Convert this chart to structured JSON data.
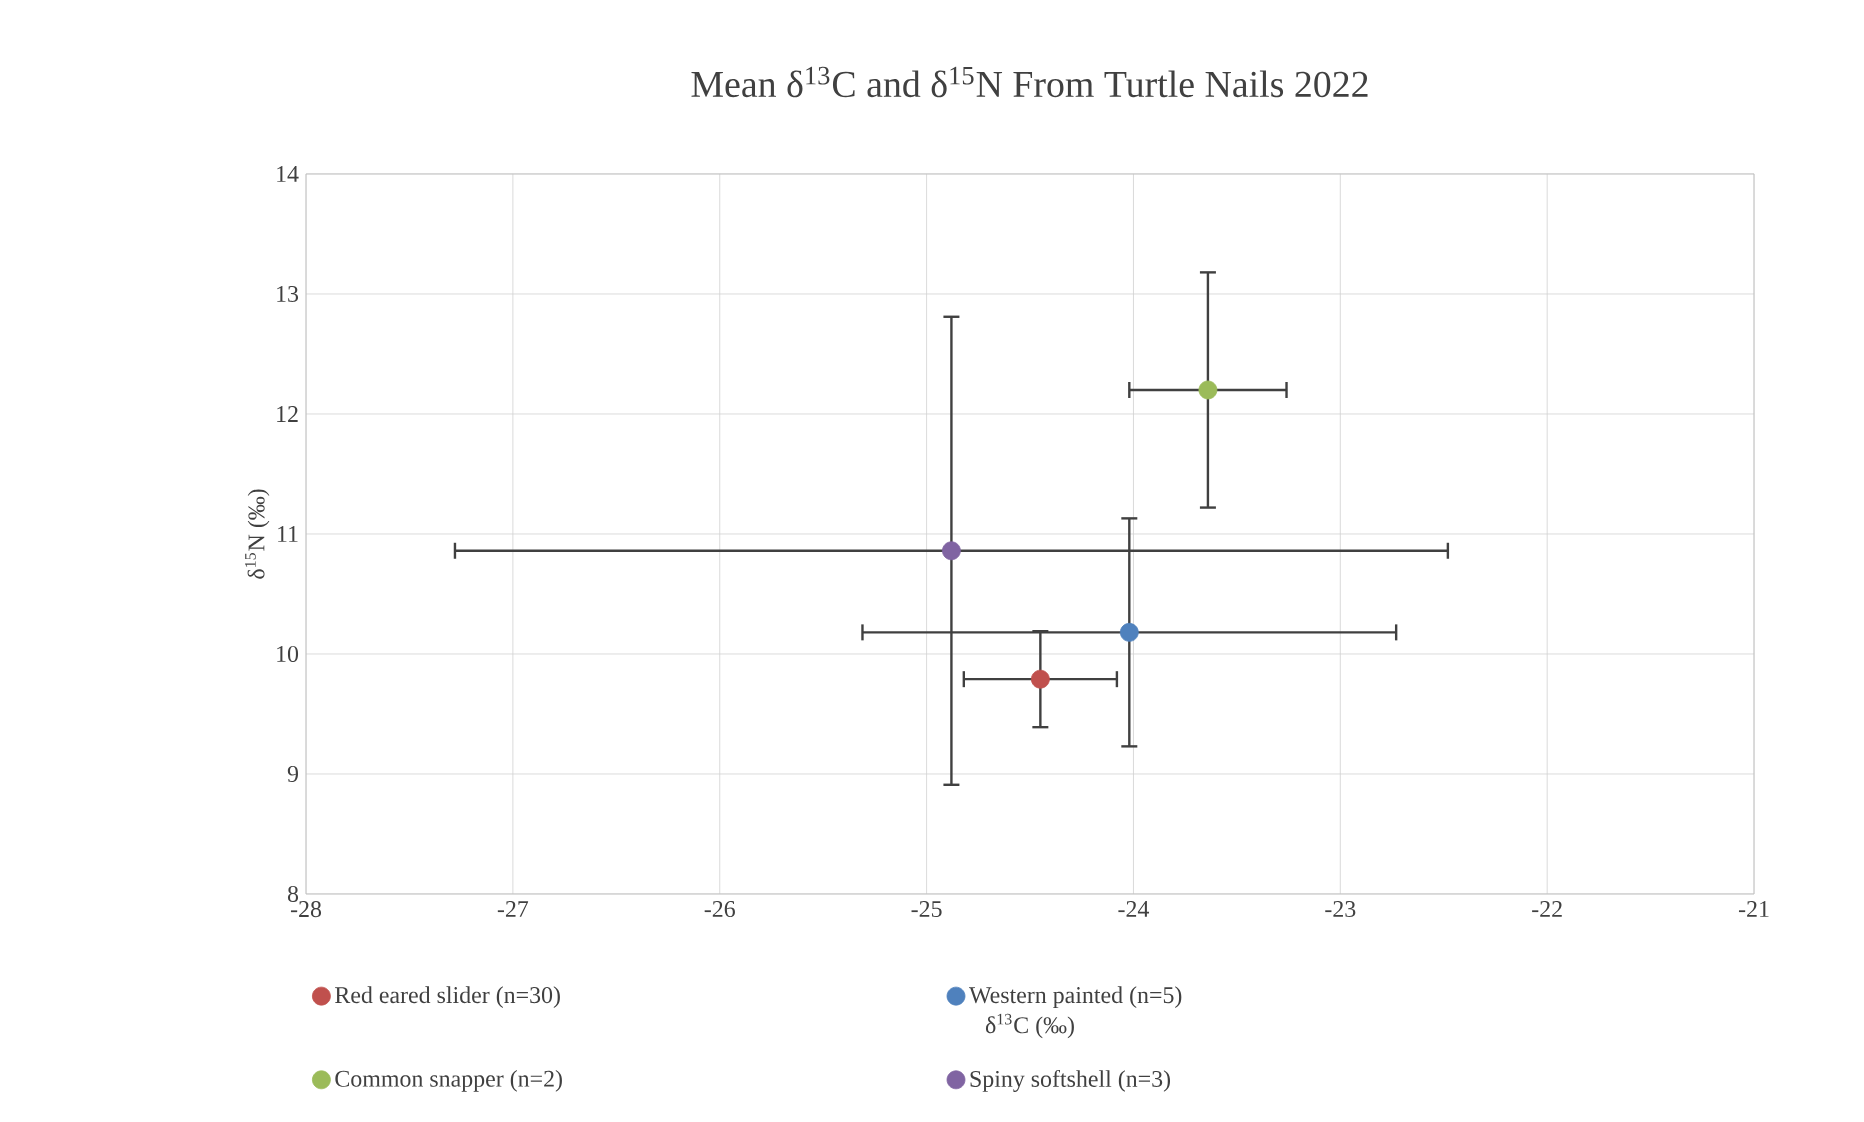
{
  "chart_data": {
    "type": "scatter",
    "title": "Mean δ$^{13}$C and δ$^{15}$N From Turtle Nails 2022",
    "xlabel": "δ$^{13}$C (‰)",
    "ylabel": "δ$^{15}$N (‰)",
    "xlim": [
      -28,
      -21
    ],
    "ylim": [
      8,
      14
    ],
    "xticks": [
      -28,
      -27,
      -26,
      -25,
      -24,
      -23,
      -22,
      -21
    ],
    "yticks": [
      8,
      9,
      10,
      11,
      12,
      13,
      14
    ],
    "grid": true,
    "legend": "bottom",
    "marker": "circle",
    "series": [
      {
        "name": "Red eared slider (n=30)",
        "color": "#c0504d",
        "x": [
          -24.45
        ],
        "values": [
          9.79
        ],
        "xerrors": [
          0.37
        ],
        "errors": [
          0.4
        ]
      },
      {
        "name": "Western painted (n=5)",
        "color": "#4f81bd",
        "x": [
          -24.02
        ],
        "values": [
          10.18
        ],
        "xerrors": [
          1.29
        ],
        "errors": [
          0.95
        ]
      },
      {
        "name": "Common snapper (n=2)",
        "color": "#9bbb59",
        "x": [
          -23.64
        ],
        "values": [
          12.2
        ],
        "xerrors": [
          0.38
        ],
        "errors": [
          0.98
        ]
      },
      {
        "name": "Spiny softshell (n=3)",
        "color": "#8064a2",
        "x": [
          -24.88
        ],
        "values": [
          10.86
        ],
        "xerrors": [
          2.4
        ],
        "errors": [
          1.95
        ]
      }
    ]
  }
}
